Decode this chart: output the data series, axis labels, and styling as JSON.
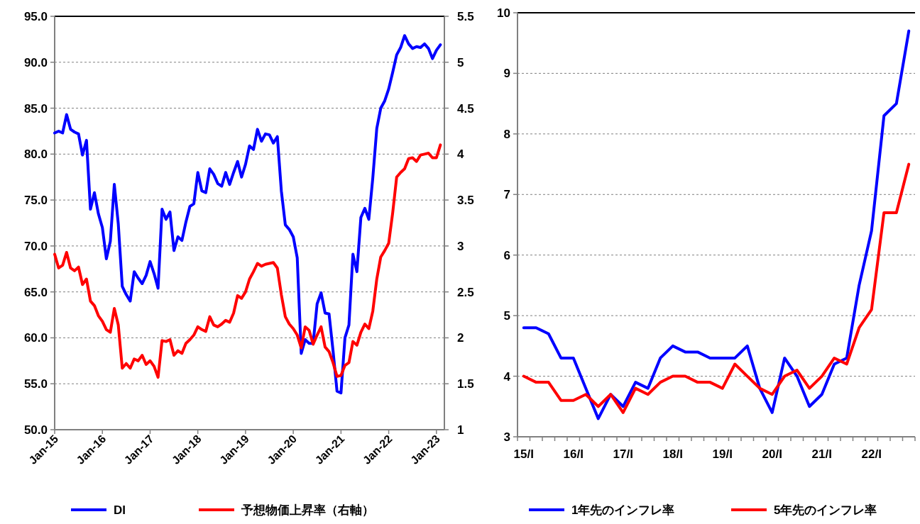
{
  "chart_data": [
    {
      "type": "line",
      "x": [
        "2015-01",
        "2015-02",
        "2015-03",
        "2015-04",
        "2015-05",
        "2015-06",
        "2015-07",
        "2015-08",
        "2015-09",
        "2015-10",
        "2015-11",
        "2015-12",
        "2016-01",
        "2016-02",
        "2016-03",
        "2016-04",
        "2016-05",
        "2016-06",
        "2016-07",
        "2016-08",
        "2016-09",
        "2016-10",
        "2016-11",
        "2016-12",
        "2017-01",
        "2017-02",
        "2017-03",
        "2017-04",
        "2017-05",
        "2017-06",
        "2017-07",
        "2017-08",
        "2017-09",
        "2017-10",
        "2017-11",
        "2017-12",
        "2018-01",
        "2018-02",
        "2018-03",
        "2018-04",
        "2018-05",
        "2018-06",
        "2018-07",
        "2018-08",
        "2018-09",
        "2018-10",
        "2018-11",
        "2018-12",
        "2019-01",
        "2019-02",
        "2019-03",
        "2019-04",
        "2019-05",
        "2019-06",
        "2019-07",
        "2019-08",
        "2019-09",
        "2019-10",
        "2019-11",
        "2019-12",
        "2020-01",
        "2020-02",
        "2020-03",
        "2020-04",
        "2020-05",
        "2020-06",
        "2020-07",
        "2020-08",
        "2020-09",
        "2020-10",
        "2020-11",
        "2020-12",
        "2021-01",
        "2021-02",
        "2021-03",
        "2021-04",
        "2021-05",
        "2021-06",
        "2021-07",
        "2021-08",
        "2021-09",
        "2021-10",
        "2021-11",
        "2021-12",
        "2022-01",
        "2022-02",
        "2022-03",
        "2022-04",
        "2022-05",
        "2022-06",
        "2022-07",
        "2022-08",
        "2022-09",
        "2022-10",
        "2022-11",
        "2022-12",
        "2023-01",
        "2023-02"
      ],
      "series": [
        {
          "name": "DI",
          "color": "#0000ff",
          "values": [
            82.3,
            82.5,
            82.3,
            84.3,
            82.7,
            82.4,
            82.2,
            79.9,
            81.5,
            74.0,
            75.8,
            73.5,
            72.0,
            68.6,
            70.5,
            76.7,
            72.4,
            65.6,
            64.7,
            64.0,
            67.2,
            66.5,
            65.9,
            66.8,
            68.3,
            67.0,
            65.4,
            74.0,
            72.9,
            73.7,
            69.5,
            71.0,
            70.6,
            72.6,
            74.3,
            74.6,
            78.0,
            76.0,
            75.8,
            78.4,
            77.8,
            76.8,
            76.5,
            78.0,
            76.7,
            78.0,
            79.2,
            77.5,
            78.9,
            80.9,
            80.5,
            82.7,
            81.4,
            82.2,
            82.1,
            81.2,
            81.9,
            76.0,
            72.3,
            71.8,
            71.0,
            68.7,
            58.3,
            59.8,
            59.4,
            59.4,
            63.7,
            64.9,
            62.7,
            62.6,
            58.6,
            54.2,
            54.0,
            60.0,
            61.4,
            69.1,
            67.2,
            73.1,
            74.1,
            72.9,
            77.4,
            82.8,
            85.0,
            85.8,
            87.1,
            88.9,
            90.8,
            91.6,
            92.9,
            92.0,
            91.5,
            91.7,
            91.6,
            92.0,
            91.5,
            90.4,
            91.3,
            91.9
          ]
        },
        {
          "name": "予想物価上昇率（右軸）",
          "color": "#ff0000",
          "axis": "y2",
          "values": [
            2.91,
            2.76,
            2.79,
            2.93,
            2.76,
            2.73,
            2.77,
            2.58,
            2.64,
            2.4,
            2.35,
            2.24,
            2.18,
            2.09,
            2.06,
            2.32,
            2.14,
            1.67,
            1.72,
            1.67,
            1.77,
            1.75,
            1.81,
            1.71,
            1.75,
            1.69,
            1.57,
            1.97,
            1.96,
            1.98,
            1.81,
            1.86,
            1.83,
            1.94,
            1.98,
            2.03,
            2.12,
            2.09,
            2.07,
            2.23,
            2.14,
            2.12,
            2.15,
            2.19,
            2.17,
            2.27,
            2.46,
            2.43,
            2.5,
            2.64,
            2.72,
            2.81,
            2.78,
            2.8,
            2.81,
            2.82,
            2.76,
            2.47,
            2.23,
            2.15,
            2.1,
            2.03,
            1.89,
            2.12,
            2.08,
            1.93,
            2.03,
            2.12,
            1.9,
            1.85,
            1.73,
            1.58,
            1.59,
            1.7,
            1.73,
            1.96,
            1.92,
            2.06,
            2.15,
            2.1,
            2.29,
            2.64,
            2.88,
            2.95,
            3.03,
            3.36,
            3.75,
            3.8,
            3.84,
            3.95,
            3.96,
            3.92,
            3.99,
            4.0,
            4.01,
            3.96,
            3.96,
            4.1
          ]
        }
      ],
      "xlim": [
        "2015-01",
        "2023-03"
      ],
      "xticks": [
        {
          "value": "2015-01",
          "label": "Jan-15"
        },
        {
          "value": "2016-01",
          "label": "Jan-16"
        },
        {
          "value": "2017-01",
          "label": "Jan-17"
        },
        {
          "value": "2018-01",
          "label": "Jan-18"
        },
        {
          "value": "2019-01",
          "label": "Jan-19"
        },
        {
          "value": "2020-01",
          "label": "Jan-20"
        },
        {
          "value": "2021-01",
          "label": "Jan-21"
        },
        {
          "value": "2022-01",
          "label": "Jan-22"
        },
        {
          "value": "2023-01",
          "label": "Jan-23"
        }
      ],
      "ylim": [
        50,
        95
      ],
      "yticks": [
        {
          "value": 50,
          "label": "50.0"
        },
        {
          "value": 55,
          "label": "55.0"
        },
        {
          "value": 60,
          "label": "60.0"
        },
        {
          "value": 65,
          "label": "65.0"
        },
        {
          "value": 70,
          "label": "70.0"
        },
        {
          "value": 75,
          "label": "75.0"
        },
        {
          "value": 80,
          "label": "80.0"
        },
        {
          "value": 85,
          "label": "85.0"
        },
        {
          "value": 90,
          "label": "90.0"
        },
        {
          "value": 95,
          "label": "95.0"
        }
      ],
      "y2lim": [
        1,
        5.5
      ],
      "y2ticks": [
        1,
        1.5,
        2,
        2.5,
        3,
        3.5,
        4,
        4.5,
        5,
        5.5
      ],
      "grid": "y",
      "legend": "bottom",
      "line_style": "solid",
      "marker": "none"
    },
    {
      "type": "line",
      "categories": [
        "15/I",
        null,
        null,
        null,
        "16/I",
        null,
        null,
        null,
        "17/I",
        null,
        null,
        null,
        "18/I",
        null,
        null,
        null,
        "19/I",
        null,
        null,
        null,
        "20/I",
        null,
        null,
        null,
        "21/I",
        null,
        null,
        null,
        "22/I",
        null,
        null,
        null
      ],
      "series": [
        {
          "name": "1年先のインフレ率",
          "color": "#0000ff",
          "values": [
            4.8,
            4.8,
            4.7,
            4.3,
            4.3,
            3.8,
            3.3,
            3.7,
            3.5,
            3.9,
            3.8,
            4.3,
            4.5,
            4.4,
            4.4,
            4.3,
            4.3,
            4.3,
            4.5,
            3.8,
            3.4,
            4.3,
            4.0,
            3.5,
            3.7,
            4.2,
            4.3,
            5.5,
            6.4,
            8.3,
            8.5,
            9.7
          ]
        },
        {
          "name": "5年先のインフレ率",
          "color": "#ff0000",
          "values": [
            4.0,
            3.9,
            3.9,
            3.6,
            3.6,
            3.7,
            3.5,
            3.7,
            3.4,
            3.8,
            3.7,
            3.9,
            4.0,
            4.0,
            3.9,
            3.9,
            3.8,
            4.2,
            4.0,
            3.8,
            3.7,
            4.0,
            4.1,
            3.8,
            4.0,
            4.3,
            4.2,
            4.8,
            5.1,
            6.7,
            6.7,
            7.5
          ]
        }
      ],
      "ylim": [
        3,
        10
      ],
      "yticks": [
        3,
        4,
        5,
        6,
        7,
        8,
        9,
        10
      ],
      "grid": "y",
      "legend": "bottom",
      "line_style": "solid",
      "marker": "none"
    }
  ]
}
